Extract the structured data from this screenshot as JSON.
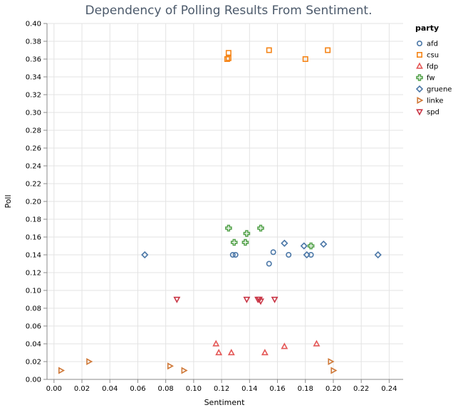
{
  "chart_data": {
    "type": "scatter",
    "title": "Dependency of Polling Results From Sentiment.",
    "xlabel": "Sentiment",
    "ylabel": "Poll",
    "xlim": [
      -0.005,
      0.25
    ],
    "ylim": [
      0,
      0.4
    ],
    "x_ticks": [
      "0.00",
      "0.02",
      "0.04",
      "0.06",
      "0.08",
      "0.10",
      "0.12",
      "0.14",
      "0.16",
      "0.18",
      "0.20",
      "0.22",
      "0.24"
    ],
    "y_ticks": [
      "0.00",
      "0.02",
      "0.04",
      "0.06",
      "0.08",
      "0.10",
      "0.12",
      "0.14",
      "0.16",
      "0.18",
      "0.20",
      "0.22",
      "0.24",
      "0.26",
      "0.28",
      "0.30",
      "0.32",
      "0.34",
      "0.36",
      "0.38",
      "0.40"
    ],
    "grid": true,
    "legend": {
      "title": "party",
      "position": "right"
    },
    "series": [
      {
        "name": "afd",
        "marker": "circle",
        "color": "#4c78a8",
        "points": [
          [
            0.128,
            0.14
          ],
          [
            0.13,
            0.14
          ],
          [
            0.154,
            0.13
          ],
          [
            0.157,
            0.143
          ],
          [
            0.168,
            0.14
          ],
          [
            0.184,
            0.14
          ]
        ]
      },
      {
        "name": "csu",
        "marker": "square",
        "color": "#f58518",
        "points": [
          [
            0.124,
            0.36
          ],
          [
            0.125,
            0.361
          ],
          [
            0.125,
            0.367
          ],
          [
            0.154,
            0.37
          ],
          [
            0.18,
            0.36
          ],
          [
            0.196,
            0.37
          ]
        ]
      },
      {
        "name": "fdp",
        "marker": "triangle-up",
        "color": "#e45756",
        "points": [
          [
            0.116,
            0.04
          ],
          [
            0.118,
            0.03
          ],
          [
            0.127,
            0.03
          ],
          [
            0.151,
            0.03
          ],
          [
            0.165,
            0.037
          ],
          [
            0.188,
            0.04
          ]
        ]
      },
      {
        "name": "fw",
        "marker": "cross",
        "color": "#54a24b",
        "points": [
          [
            0.125,
            0.17
          ],
          [
            0.129,
            0.154
          ],
          [
            0.137,
            0.154
          ],
          [
            0.138,
            0.164
          ],
          [
            0.148,
            0.17
          ],
          [
            0.184,
            0.15
          ]
        ]
      },
      {
        "name": "gruene",
        "marker": "diamond",
        "color": "#4c78a8",
        "points": [
          [
            0.065,
            0.14
          ],
          [
            0.165,
            0.153
          ],
          [
            0.179,
            0.15
          ],
          [
            0.181,
            0.14
          ],
          [
            0.193,
            0.152
          ],
          [
            0.232,
            0.14
          ]
        ]
      },
      {
        "name": "linke",
        "marker": "triangle-right",
        "color": "#d07a3a",
        "points": [
          [
            0.005,
            0.01
          ],
          [
            0.025,
            0.02
          ],
          [
            0.083,
            0.015
          ],
          [
            0.093,
            0.01
          ],
          [
            0.198,
            0.02
          ],
          [
            0.2,
            0.01
          ]
        ]
      },
      {
        "name": "spd",
        "marker": "triangle-down",
        "color": "#c93646",
        "points": [
          [
            0.088,
            0.09
          ],
          [
            0.138,
            0.09
          ],
          [
            0.146,
            0.09
          ],
          [
            0.147,
            0.09
          ],
          [
            0.148,
            0.088
          ],
          [
            0.158,
            0.09
          ]
        ]
      }
    ]
  }
}
